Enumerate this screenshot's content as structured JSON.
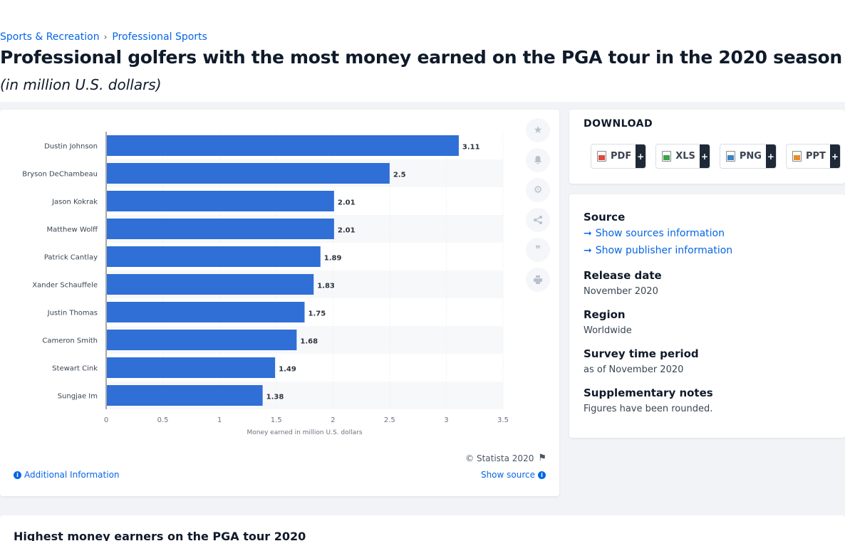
{
  "breadcrumb": [
    "Sports & Recreation",
    "Professional Sports"
  ],
  "title": "Professional golfers with the most money earned on the PGA tour in the 2020 season",
  "subtitle": "(in million U.S. dollars)",
  "chart_data": {
    "type": "bar",
    "orientation": "horizontal",
    "categories": [
      "Dustin Johnson",
      "Bryson DeChambeau",
      "Jason Kokrak",
      "Matthew Wolff",
      "Patrick Cantlay",
      "Xander Schauffele",
      "Justin Thomas",
      "Cameron Smith",
      "Stewart Cink",
      "Sungjae Im"
    ],
    "values": [
      3.11,
      2.5,
      2.01,
      2.01,
      1.89,
      1.83,
      1.75,
      1.68,
      1.49,
      1.38
    ],
    "value_labels": [
      "3.11",
      "2.5",
      "2.01",
      "2.01",
      "1.89",
      "1.83",
      "1.75",
      "1.68",
      "1.49",
      "1.38"
    ],
    "xlabel": "Money earned in million U.S. dollars",
    "xlim": [
      0,
      3.5
    ],
    "xticks": [
      "0",
      "0.5",
      "1",
      "1.5",
      "2",
      "2.5",
      "3",
      "3.5"
    ],
    "bar_color": "#2f6fd6",
    "grid": true
  },
  "chart_footer": {
    "copyright": "© Statista 2020",
    "additional_info": "Additional Information",
    "show_source": "Show source"
  },
  "download": {
    "title": "DOWNLOAD",
    "buttons": [
      {
        "label": "PDF",
        "color": "#e0483e"
      },
      {
        "label": "XLS",
        "color": "#3aa34a"
      },
      {
        "label": "PNG",
        "color": "#3b82c4"
      },
      {
        "label": "PPT",
        "color": "#e98b2a"
      }
    ],
    "plus": "+"
  },
  "info": {
    "source_label": "Source",
    "show_sources": "Show sources information",
    "show_publisher": "Show publisher information",
    "release_label": "Release date",
    "release_value": "November 2020",
    "region_label": "Region",
    "region_value": "Worldwide",
    "survey_label": "Survey time period",
    "survey_value": "as of November 2020",
    "notes_label": "Supplementary notes",
    "notes_value": "Figures have been rounded."
  },
  "bottom": {
    "title": "Highest money earners on the PGA tour 2020"
  }
}
